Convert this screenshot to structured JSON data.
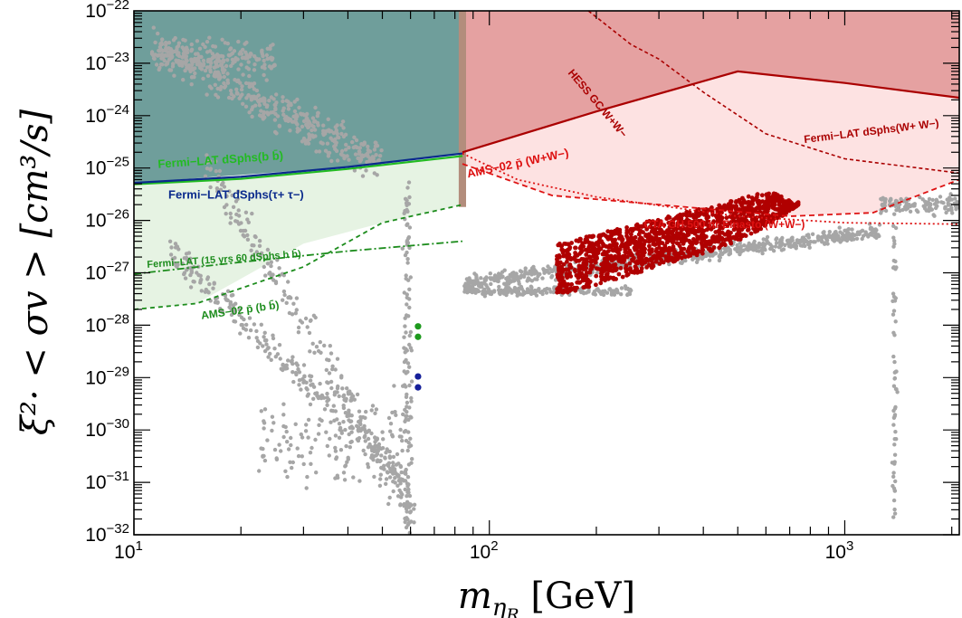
{
  "chart_data": {
    "type": "scatter",
    "title": "",
    "xlabel": "m_{η_R} [GeV]",
    "ylabel": "ξ²· < σv > [cm³/s]",
    "x_scale": "log",
    "y_scale": "log",
    "xlim": [
      10,
      2100
    ],
    "ylim": [
      1e-32,
      1e-22
    ],
    "x_ticks": [
      {
        "value": 10,
        "base": "10",
        "exp": "1"
      },
      {
        "value": 100,
        "base": "10",
        "exp": "2"
      },
      {
        "value": 1000,
        "base": "10",
        "exp": "3"
      }
    ],
    "y_ticks": [
      {
        "value": 1e-22,
        "base": "10",
        "exp": "−22"
      },
      {
        "value": 1e-23,
        "base": "10",
        "exp": "−23"
      },
      {
        "value": 1e-24,
        "base": "10",
        "exp": "−24"
      },
      {
        "value": 1e-25,
        "base": "10",
        "exp": "−25"
      },
      {
        "value": 1e-26,
        "base": "10",
        "exp": "−26"
      },
      {
        "value": 1e-27,
        "base": "10",
        "exp": "−27"
      },
      {
        "value": 1e-28,
        "base": "10",
        "exp": "−28"
      },
      {
        "value": 1e-29,
        "base": "10",
        "exp": "−29"
      },
      {
        "value": 1e-30,
        "base": "10",
        "exp": "−30"
      },
      {
        "value": 1e-31,
        "base": "10",
        "exp": "−31"
      },
      {
        "value": 1e-32,
        "base": "10",
        "exp": "−32"
      }
    ],
    "regions": [
      {
        "name": "teal-excluded",
        "color": "#6f9e9b",
        "polygon": [
          [
            10,
            1e-22
          ],
          [
            84,
            1e-22
          ],
          [
            84,
            1.9e-25
          ],
          [
            40,
            1.05e-25
          ],
          [
            10,
            5.2e-26
          ]
        ]
      },
      {
        "name": "fermi-bb-band",
        "color": "#e6f3e3",
        "polygon": [
          [
            10,
            4.9e-26
          ],
          [
            40,
            9.6e-26
          ],
          [
            84,
            1.7e-25
          ],
          [
            84,
            2e-26
          ],
          [
            50,
            9e-27
          ],
          [
            30,
            3.6e-27
          ],
          [
            15,
            2.6e-28
          ],
          [
            10,
            2e-28
          ]
        ]
      },
      {
        "name": "fermi-ww-excluded",
        "color": "#e5a1a1",
        "polygon": [
          [
            84,
            1e-22
          ],
          [
            2100,
            1e-22
          ],
          [
            2100,
            2.2e-24
          ],
          [
            1000,
            4.2e-24
          ],
          [
            500,
            7e-24
          ],
          [
            200,
            1.2e-24
          ],
          [
            84,
            2e-25
          ]
        ]
      },
      {
        "name": "ams-ww-band",
        "color": "#fde2e2",
        "polygon": [
          [
            84,
            2e-25
          ],
          [
            200,
            1.2e-24
          ],
          [
            500,
            7e-24
          ],
          [
            1000,
            4.2e-24
          ],
          [
            2100,
            2.2e-24
          ],
          [
            2100,
            6e-26
          ],
          [
            1200,
            1.4e-26
          ],
          [
            700,
            1.2e-26
          ],
          [
            300,
            2e-26
          ],
          [
            150,
            3e-26
          ],
          [
            84,
            1.2e-25
          ]
        ]
      },
      {
        "name": "transition-strip",
        "color": "#b38d7c",
        "polygon": [
          [
            82,
            1e-22
          ],
          [
            86,
            1e-22
          ],
          [
            86,
            1.8e-26
          ],
          [
            82,
            1.8e-26
          ]
        ]
      }
    ],
    "curves": [
      {
        "label": "Fermi–LAT dSphs(b b̄)",
        "color": "#22bb22",
        "dash": "",
        "width": 2.2,
        "points": [
          [
            10,
            4.9e-26
          ],
          [
            20,
            6.2e-26
          ],
          [
            40,
            9.6e-26
          ],
          [
            84,
            1.7e-25
          ]
        ]
      },
      {
        "label": "Fermi–LAT dSphs(τ+ τ−)",
        "color": "#0a2a8c",
        "dash": "",
        "width": 2.2,
        "points": [
          [
            10,
            5.2e-26
          ],
          [
            20,
            6.8e-26
          ],
          [
            40,
            1.05e-25
          ],
          [
            84,
            1.9e-25
          ]
        ]
      },
      {
        "label": "Fermi–LAT (15 yrs 60 dSphs b b̄)",
        "color": "#1c8c1c",
        "dash": "8 3 2 3",
        "width": 1.8,
        "points": [
          [
            10,
            9.5e-28
          ],
          [
            20,
            1.6e-27
          ],
          [
            40,
            2.6e-27
          ],
          [
            84,
            4e-27
          ]
        ]
      },
      {
        "label": "AMS−02 p̄ (b b̄)",
        "color": "#1c8c1c",
        "dash": "5 4",
        "width": 1.8,
        "points": [
          [
            10,
            2e-28
          ],
          [
            15,
            2.6e-28
          ],
          [
            30,
            1.3e-27
          ],
          [
            50,
            9e-27
          ],
          [
            84,
            2e-26
          ]
        ]
      },
      {
        "label": "Fermi–LAT dSphs(W+ W−)",
        "color": "#aa0000",
        "dash": "",
        "width": 2.2,
        "points": [
          [
            84,
            2e-25
          ],
          [
            200,
            1.2e-24
          ],
          [
            500,
            7e-24
          ],
          [
            1000,
            4.2e-24
          ],
          [
            2100,
            2.2e-24
          ]
        ]
      },
      {
        "label": "AMS−02 p̄ (W+W−)",
        "color": "#dd1111",
        "dash": "6 4",
        "width": 1.8,
        "points": [
          [
            84,
            1.2e-25
          ],
          [
            150,
            3e-26
          ],
          [
            300,
            2e-26
          ],
          [
            700,
            1.2e-26
          ],
          [
            1200,
            1.4e-26
          ],
          [
            2100,
            6e-26
          ]
        ]
      },
      {
        "label": "CTA GH 500 hr Einasto (W+W−)",
        "color": "#dd1111",
        "dash": "2 3",
        "width": 1.8,
        "points": [
          [
            84,
            1.9e-25
          ],
          [
            120,
            6e-26
          ],
          [
            200,
            2.8e-26
          ],
          [
            500,
            1.2e-26
          ],
          [
            1000,
            9e-27
          ],
          [
            2100,
            8.5e-27
          ]
        ]
      },
      {
        "label": "HESS GC W+W−",
        "color": "#aa0000",
        "dash": "4 3",
        "width": 1.6,
        "points": [
          [
            190,
            1e-22
          ],
          [
            250,
            2.3e-23
          ],
          [
            300,
            1.2e-23
          ],
          [
            400,
            2.8e-24
          ],
          [
            600,
            4.5e-25
          ],
          [
            1000,
            1.5e-25
          ],
          [
            2100,
            8e-26
          ]
        ]
      }
    ],
    "annotations": [
      {
        "text": "Fermi−LAT dSphs(b b̄)",
        "color": "#22bb22",
        "x": 11.7,
        "y": 1e-25,
        "angle": -4,
        "size": 13
      },
      {
        "text": "Fermi−LAT dSphs(τ+ τ−)",
        "color": "#0a2a8c",
        "x": 12.5,
        "y": 2.6e-26,
        "angle": 0,
        "size": 13
      },
      {
        "text": "Fermi−LAT (15 yrs 60 dSphs b b̄)",
        "color": "#1c8c1c",
        "x": 10.9,
        "y": 1.25e-27,
        "angle": -4,
        "size": 11
      },
      {
        "text": "AMS−02 p̄ (b b̄)",
        "color": "#1c8c1c",
        "x": 15.5,
        "y": 1.3e-28,
        "angle": -8,
        "size": 12
      },
      {
        "text": "HESS GC W+W−",
        "color": "#aa0000",
        "x": 166,
        "y": 6.5e-24,
        "angle": 50,
        "size": 12
      },
      {
        "text": "Fermi−LAT dSphs(W+ W−)",
        "color": "#aa0000",
        "x": 770,
        "y": 3e-25,
        "angle": -7,
        "size": 12
      },
      {
        "text": "AMS−02 p̄ (W+W−)",
        "color": "#dd1111",
        "x": 87,
        "y": 6.5e-26,
        "angle": -12,
        "size": 13
      },
      {
        "text": "CTA GH 500 hr Einasto (W+W−)",
        "color": "#dd1111",
        "x": 272,
        "y": 7.2e-27,
        "angle": 0,
        "size": 12
      }
    ],
    "series": [
      {
        "name": "",
        "color": "#a6a6a6",
        "kind": "scan"
      },
      {
        "name": "",
        "color": "#b00000",
        "kind": "highlight"
      }
    ],
    "benchmark_points": [
      {
        "x": 63,
        "y": 9.5e-29,
        "color": "#1e9a1e"
      },
      {
        "x": 63,
        "y": 6e-29,
        "color": "#1e9a1e"
      },
      {
        "x": 63,
        "y": 1.05e-29,
        "color": "#16209a"
      },
      {
        "x": 63,
        "y": 6.5e-30,
        "color": "#16209a"
      }
    ],
    "grid": false,
    "legend": "none"
  }
}
